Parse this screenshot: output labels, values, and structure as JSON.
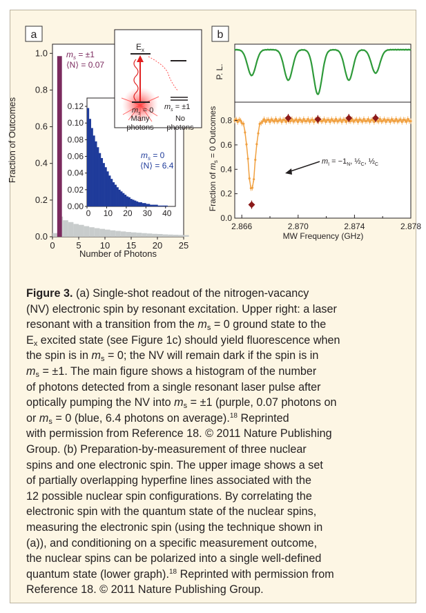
{
  "panel_a": {
    "label": "a",
    "ylabel": "Fraction of Outcomes",
    "xlabel": "Number of Photons",
    "legend_ms1": "m_s = ±1",
    "legend_ms1_n": "⟨N⟩ = 0.07",
    "inset_legend_ms0": "m_s = 0",
    "inset_legend_ms0_n": "⟨N⟩ = 6.4",
    "schematic": {
      "excited_state": "E_x",
      "ground_ms0": "m_s = 0",
      "ground_ms1": "m_s = ±1",
      "left_caption": "Many photons",
      "right_caption": "No photons"
    },
    "colors": {
      "ms1": "#7b2a5e",
      "ms0": "#1f3b9a",
      "gray": "#c8cccc"
    }
  },
  "panel_b": {
    "label": "b",
    "upper_ylabel": "P. L.",
    "lower_ylabel": "Fraction of m_s = 0 Outcomes",
    "xlabel": "MW Frequency (GHz)",
    "annotation": "m_I = −1_N, ½_C, ½_C",
    "colors": {
      "pl": "#2e9a3a",
      "orange": "#f0a040",
      "dark_red": "#8b1a1a"
    }
  },
  "caption": {
    "figure_label": "Figure 3.",
    "line1": "(a) Single-shot readout of the nitrogen-vacancy",
    "line2": "(NV) electronic spin by resonant excitation. Upper right: a laser",
    "line3a": "resonant with a transition from the ",
    "line3b": " = 0 ground state to the",
    "line4a": "E",
    "line4b": " excited state (see Figure 1c) should yield fluorescence when",
    "line5a": "the spin is in ",
    "line5b": " = 0; the NV will remain dark if the spin is in",
    "line6b": " = ±1. The main figure shows a histogram of the number",
    "line7": "of photons detected from a single resonant laser pulse after",
    "line8a": "optically pumping the NV into ",
    "line8b": " = ±1 (purple, 0.07 photons on",
    "line9b": " = 0 (blue, 6.4 photons on average).",
    "ref": "18",
    "line9c": " Reprinted",
    "line10": "with permission from Reference 18. © 2011 Nature Publishing",
    "line11": "Group. (b) Preparation-by-measurement of three nuclear",
    "line12": "spins and one electronic spin. The upper image shows a set",
    "line13": "of partially overlapping hyperfine lines associated with the",
    "line14": "12 possible nuclear spin configurations. By correlating the",
    "line15": "electronic spin with the quantum state of the nuclear spins,",
    "line16": "measuring the electronic spin (using the technique shown in",
    "line17": "(a)), and conditioning on a specific measurement outcome,",
    "line18": "the nuclear spins can be polarized into a single well-defined",
    "line19a": "quantum state (lower graph).",
    "line19b": " Reprinted with permission from",
    "line20": "Reference 18. © 2011 Nature Publishing Group.",
    "m": "m",
    "s": "s",
    "x": "x",
    "or": "or "
  },
  "chart_data": [
    {
      "type": "bar",
      "name_ref": "panel_a_main",
      "x_ticks": [
        0,
        5,
        10,
        15,
        20,
        25
      ],
      "y_ticks": [
        0.0,
        0.2,
        0.4,
        0.6,
        0.8,
        1.0
      ],
      "xlim": [
        0,
        25
      ],
      "ylim": [
        0,
        1.05
      ],
      "series": [
        {
          "name": "m_s = ±1",
          "x": [
            1
          ],
          "values": [
            0.985
          ]
        },
        {
          "x": [
            0,
            1,
            2,
            3,
            4,
            5,
            6,
            7,
            8,
            9,
            10,
            11,
            12,
            13,
            14,
            15,
            16,
            17,
            18,
            19,
            20,
            21,
            22,
            23,
            24,
            25
          ],
          "values": [
            0.02,
            0.11,
            0.09,
            0.08,
            0.07,
            0.065,
            0.058,
            0.052,
            0.047,
            0.043,
            0.039,
            0.035,
            0.032,
            0.029,
            0.026,
            0.024,
            0.022,
            0.02,
            0.018,
            0.016,
            0.015,
            0.013,
            0.012,
            0.011,
            0.01,
            0.009
          ]
        }
      ],
      "xlabel": "Number of Photons",
      "ylabel": "Fraction of Outcomes"
    },
    {
      "type": "bar",
      "name_ref": "panel_a_inset",
      "x_ticks": [
        0,
        10,
        20,
        30,
        40
      ],
      "y_ticks": [
        0.0,
        0.02,
        0.04,
        0.06,
        0.08,
        0.1,
        0.12
      ],
      "xlim": [
        0,
        45
      ],
      "ylim": [
        0,
        0.13
      ],
      "series": [
        {
          "name": "m_s = 0",
          "x": [
            0,
            1,
            2,
            3,
            4,
            5,
            6,
            7,
            8,
            9,
            10,
            11,
            12,
            13,
            14,
            15,
            16,
            17,
            18,
            19,
            20,
            21,
            22,
            23,
            24,
            25,
            26,
            27,
            28,
            29,
            30,
            31,
            32,
            33,
            34,
            35,
            36,
            37,
            38,
            39,
            40
          ],
          "values": [
            0.118,
            0.105,
            0.094,
            0.085,
            0.078,
            0.071,
            0.064,
            0.058,
            0.052,
            0.047,
            0.042,
            0.037,
            0.033,
            0.029,
            0.026,
            0.023,
            0.02,
            0.018,
            0.016,
            0.014,
            0.012,
            0.011,
            0.009,
            0.008,
            0.007,
            0.006,
            0.005,
            0.005,
            0.004,
            0.004,
            0.003,
            0.003,
            0.002,
            0.002,
            0.002,
            0.002,
            0.001,
            0.001,
            0.001,
            0.001,
            0.001
          ]
        }
      ]
    },
    {
      "type": "line",
      "name_ref": "panel_b_upper",
      "xlim": [
        2.8655,
        2.878
      ],
      "dips": [
        2.8667,
        2.8693,
        2.8714,
        2.8736,
        2.8755
      ],
      "dip_depths": [
        0.55,
        0.65,
        0.95,
        0.65,
        0.5
      ]
    },
    {
      "type": "scatter",
      "name_ref": "panel_b_lower",
      "x_ticks": [
        2.866,
        2.87,
        2.874,
        2.878
      ],
      "x_tick_labels": [
        "2.866",
        "2.870",
        "2.874",
        "2.878"
      ],
      "minor_ticks": [
        2.868,
        2.872,
        2.876
      ],
      "y_ticks": [
        0.0,
        0.2,
        0.4,
        0.6,
        0.8
      ],
      "xlim": [
        2.8655,
        2.878
      ],
      "ylim": [
        0,
        0.95
      ],
      "orange_baseline": 0.8,
      "orange_dip": {
        "center": 2.8667,
        "min": 0.23,
        "width": 0.00035
      },
      "dark_red_points": [
        {
          "x": 2.8667,
          "y": 0.11
        },
        {
          "x": 2.8693,
          "y": 0.82
        },
        {
          "x": 2.8714,
          "y": 0.81
        },
        {
          "x": 2.8736,
          "y": 0.82
        },
        {
          "x": 2.8755,
          "y": 0.82
        }
      ],
      "xlabel": "MW Frequency (GHz)",
      "ylabel": "Fraction of m_s = 0 Outcomes"
    }
  ]
}
